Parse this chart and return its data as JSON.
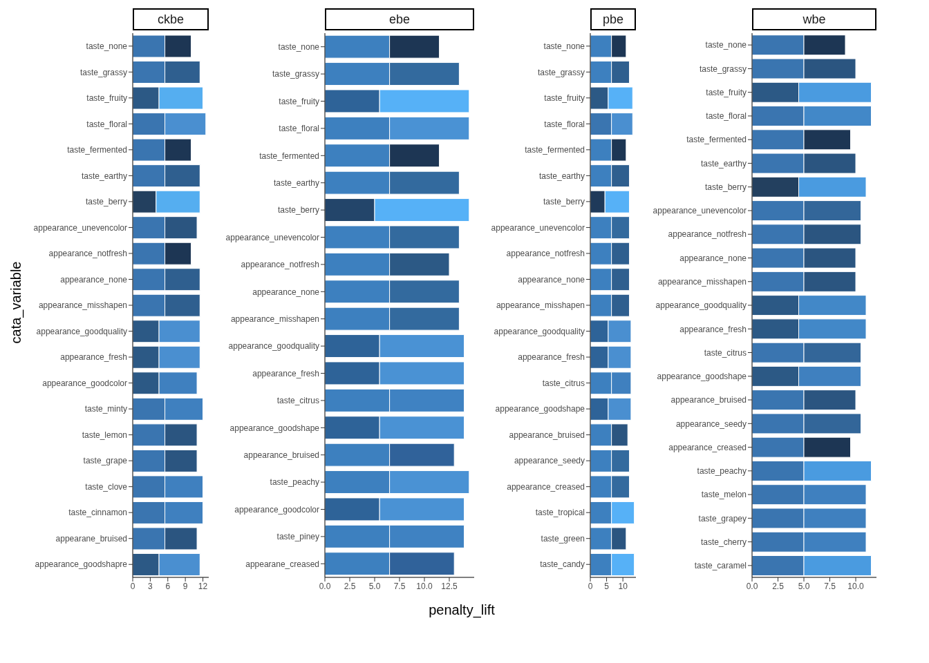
{
  "chart_data": [
    {
      "type": "bar",
      "orientation": "horizontal",
      "stacked": true,
      "title": "ckbe",
      "ylabel": "cata_variable",
      "categories": [
        "taste_none",
        "taste_grassy",
        "taste_fruity",
        "taste_floral",
        "taste_fermented",
        "taste_earthy",
        "taste_berry",
        "appearance_unevencolor",
        "appearance_notfresh",
        "appearance_none",
        "appearance_misshapen",
        "appearance_goodquality",
        "appearance_fresh",
        "appearance_goodcolor",
        "taste_minty",
        "taste_lemon",
        "taste_grape",
        "taste_clove",
        "taste_cinnamon",
        "appearane_bruised",
        "appearance_goodshapre"
      ],
      "series": [
        {
          "values": [
            5.5,
            5.5,
            4.5,
            5.5,
            5.5,
            5.5,
            4,
            5.5,
            5.5,
            5.5,
            5.5,
            4.5,
            4.5,
            4.5,
            5.5,
            5.5,
            5.5,
            5.5,
            5.5,
            5.5,
            4.5
          ],
          "colors": [
            "#3a75b0",
            "#3a75b0",
            "#2c5985",
            "#3a75b0",
            "#3a75b0",
            "#3a75b0",
            "#23405f",
            "#3a75b0",
            "#3a75b0",
            "#3a75b0",
            "#3a75b0",
            "#2c5985",
            "#2c5985",
            "#2c5985",
            "#3a75b0",
            "#3a75b0",
            "#3a75b0",
            "#3a75b0",
            "#3a75b0",
            "#3a75b0",
            "#2c5985"
          ]
        },
        {
          "values": [
            4.5,
            6,
            7.5,
            7,
            4.5,
            6,
            7.5,
            5.5,
            4.5,
            6,
            6,
            7,
            7,
            6.5,
            6.5,
            5.5,
            5.5,
            6.5,
            6.5,
            5.5,
            7
          ],
          "colors": [
            "#1d3654",
            "#2f5f8f",
            "#55aef0",
            "#4a8fd0",
            "#1d3654",
            "#2f5f8f",
            "#55aef0",
            "#2b5580",
            "#1d3654",
            "#2f5f8f",
            "#2f5f8f",
            "#4a8fd0",
            "#4a8fd0",
            "#3f80bf",
            "#3f80bf",
            "#2b5580",
            "#2b5580",
            "#3f80bf",
            "#3f80bf",
            "#2b5580",
            "#4a8fd0"
          ]
        }
      ],
      "xlim": [
        0,
        13
      ],
      "xticks": [
        0,
        3,
        6,
        9,
        12
      ]
    },
    {
      "type": "bar",
      "orientation": "horizontal",
      "stacked": true,
      "title": "ebe",
      "xlabel": "penalty_lift",
      "categories": [
        "taste_none",
        "taste_grassy",
        "taste_fruity",
        "taste_floral",
        "taste_fermented",
        "taste_earthy",
        "taste_berry",
        "appearance_unevencolor",
        "appearance_notfresh",
        "appearance_none",
        "appearance_misshapen",
        "appearance_goodquality",
        "appearance_fresh",
        "taste_citrus",
        "appearance_goodshape",
        "appearance_bruised",
        "taste_peachy",
        "appearance_goodcolor",
        "taste_piney",
        "appearane_creased"
      ],
      "series": [
        {
          "values": [
            6.5,
            6.5,
            5.5,
            6.5,
            6.5,
            6.5,
            5,
            6.5,
            6.5,
            6.5,
            6.5,
            5.5,
            5.5,
            6.5,
            5.5,
            6.5,
            6.5,
            5.5,
            6.5,
            6.5
          ],
          "colors": [
            "#3d80bf",
            "#3d80bf",
            "#2e6398",
            "#3d80bf",
            "#3d80bf",
            "#3d80bf",
            "#23456a",
            "#3d80bf",
            "#3d80bf",
            "#3d80bf",
            "#3d80bf",
            "#2e6398",
            "#2e6398",
            "#3d80bf",
            "#2e6398",
            "#3d80bf",
            "#3d80bf",
            "#2e6398",
            "#3d80bf",
            "#3d80bf"
          ]
        },
        {
          "values": [
            5,
            7,
            9,
            8,
            5,
            7,
            9.5,
            7,
            6,
            7,
            7,
            8.5,
            8.5,
            7.5,
            8.5,
            6.5,
            8,
            8.5,
            7.5,
            6.5
          ],
          "colors": [
            "#1d3654",
            "#336a9e",
            "#56b1f7",
            "#4a92d4",
            "#1d3654",
            "#336a9e",
            "#56b1f7",
            "#336a9e",
            "#2c5985",
            "#336a9e",
            "#336a9e",
            "#4a92d4",
            "#4a92d4",
            "#3f82c2",
            "#4a92d4",
            "#30629a",
            "#4a92d4",
            "#4a92d4",
            "#3f82c2",
            "#30629a"
          ]
        }
      ],
      "xlim": [
        0,
        15
      ],
      "xticks": [
        {
          "value": 0,
          "label": "0.0"
        },
        {
          "value": 2.5,
          "label": "2.5"
        },
        {
          "value": 5,
          "label": "5.0"
        },
        {
          "value": 7.5,
          "label": "7.5"
        },
        {
          "value": 10,
          "label": "10.0"
        },
        {
          "value": 12.5,
          "label": "12.5"
        }
      ]
    },
    {
      "type": "bar",
      "orientation": "horizontal",
      "stacked": true,
      "title": "pbe",
      "categories": [
        "taste_none",
        "taste_grassy",
        "taste_fruity",
        "taste_floral",
        "taste_fermented",
        "taste_earthy",
        "taste_berry",
        "appearance_unevencolor",
        "appearance_notfresh",
        "appearance_none",
        "appearance_misshapen",
        "appearance_goodquality",
        "appearance_fresh",
        "taste_citrus",
        "appearance_goodshape",
        "appearance_bruised",
        "appearance_seedy",
        "appearance_creased",
        "taste_tropical",
        "taste_green",
        "taste_candy"
      ],
      "series": [
        {
          "values": [
            6.5,
            6.5,
            5.5,
            6.5,
            6.5,
            6.5,
            4.5,
            6.5,
            6.5,
            6.5,
            6.5,
            5.5,
            5.5,
            6.5,
            5.5,
            6.5,
            6.5,
            6.5,
            6.5,
            6.5,
            6.5
          ],
          "colors": [
            "#3d80bf",
            "#3d80bf",
            "#2c5985",
            "#3a75b0",
            "#3d80bf",
            "#3d80bf",
            "#1f3a5a",
            "#3d80bf",
            "#3d80bf",
            "#3d80bf",
            "#3d80bf",
            "#2e6398",
            "#2e6398",
            "#3d80bf",
            "#2e6398",
            "#3d80bf",
            "#3d80bf",
            "#3d80bf",
            "#3d80bf",
            "#3d80bf",
            "#3d80bf"
          ]
        },
        {
          "values": [
            4.5,
            5.5,
            7.5,
            6.5,
            4.5,
            5.5,
            7.5,
            5.5,
            5.5,
            5.5,
            5.5,
            7,
            7,
            6,
            7,
            5,
            5.5,
            5.5,
            7,
            4.5,
            7
          ],
          "colors": [
            "#1d3654",
            "#2f5f8f",
            "#56b1f7",
            "#4a8fd0",
            "#1d3654",
            "#2f5f8f",
            "#56b1f7",
            "#336a9e",
            "#2f5f8f",
            "#2f5f8f",
            "#2f5f8f",
            "#4a8fd0",
            "#4a8fd0",
            "#3f80bf",
            "#4a8fd0",
            "#2b5580",
            "#336a9e",
            "#336a9e",
            "#56b1f7",
            "#2b5580",
            "#56b1f7"
          ]
        }
      ],
      "xlim": [
        0,
        14
      ],
      "xticks": [
        0,
        5,
        10
      ]
    },
    {
      "type": "bar",
      "orientation": "horizontal",
      "stacked": true,
      "title": "wbe",
      "categories": [
        "taste_none",
        "taste_grassy",
        "taste_fruity",
        "taste_floral",
        "taste_fermented",
        "taste_earthy",
        "taste_berry",
        "appearance_unevencolor",
        "appearance_notfresh",
        "appearance_none",
        "appearance_misshapen",
        "appearance_goodquality",
        "appearance_fresh",
        "taste_citrus",
        "appearance_goodshape",
        "appearance_bruised",
        "appearance_seedy",
        "appearance_creased",
        "taste_peachy",
        "taste_melon",
        "taste_grapey",
        "taste_cherry",
        "taste_caramel"
      ],
      "series": [
        {
          "values": [
            5,
            5,
            4.5,
            5,
            5,
            5,
            4.5,
            5,
            5,
            5,
            5,
            4.5,
            4.5,
            5,
            4.5,
            5,
            5,
            5,
            5,
            5,
            5,
            5,
            5
          ],
          "colors": [
            "#3a75b0",
            "#3a75b0",
            "#2c5985",
            "#3a75b0",
            "#3a75b0",
            "#3a75b0",
            "#23405f",
            "#3a75b0",
            "#3a75b0",
            "#3a75b0",
            "#3a75b0",
            "#2c5985",
            "#2c5985",
            "#3a75b0",
            "#2c5985",
            "#3a75b0",
            "#3a75b0",
            "#3a75b0",
            "#3a75b0",
            "#3a75b0",
            "#3a75b0",
            "#3a75b0",
            "#3a75b0"
          ]
        },
        {
          "values": [
            4,
            5,
            7,
            6.5,
            4.5,
            5,
            6.5,
            5.5,
            5.5,
            5,
            5,
            6.5,
            6.5,
            5.5,
            6,
            5,
            5.5,
            4.5,
            6.5,
            6,
            6,
            6,
            6.5
          ],
          "colors": [
            "#1d3654",
            "#2b5580",
            "#4a9be0",
            "#4288c8",
            "#1d3654",
            "#2b5580",
            "#4a9be0",
            "#336699",
            "#2b5580",
            "#2b5580",
            "#2b5580",
            "#4288c8",
            "#4288c8",
            "#336699",
            "#3f80bf",
            "#2b5580",
            "#336699",
            "#1d3654",
            "#4a9be0",
            "#3f80bf",
            "#3f80bf",
            "#3f80bf",
            "#4a9be0"
          ]
        }
      ],
      "xlim": [
        0,
        12
      ],
      "xticks": [
        {
          "value": 0,
          "label": "0.0"
        },
        {
          "value": 2.5,
          "label": "2.5"
        },
        {
          "value": 5,
          "label": "5.0"
        },
        {
          "value": 7.5,
          "label": "7.5"
        },
        {
          "value": 10,
          "label": "10.0"
        }
      ]
    }
  ]
}
